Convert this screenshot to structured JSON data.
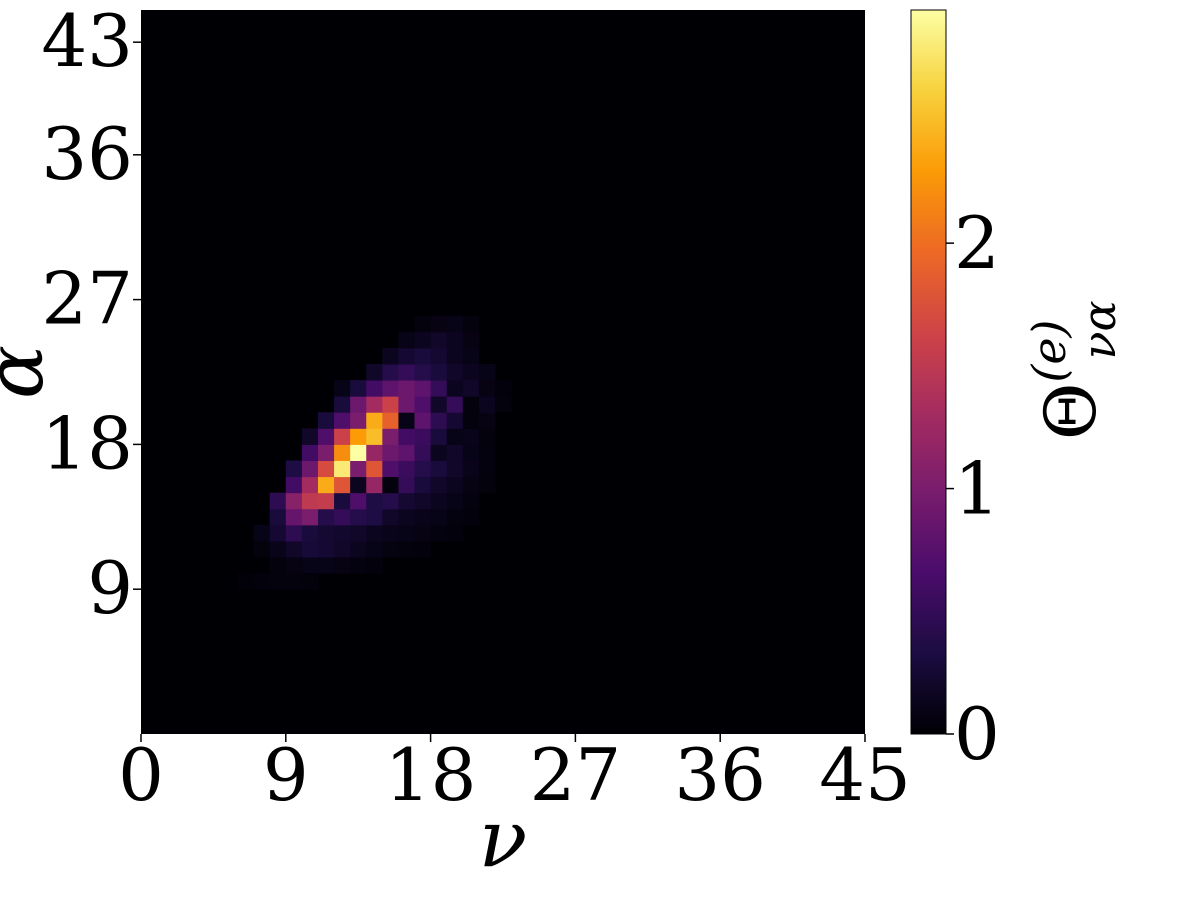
{
  "chart_data": {
    "type": "heatmap",
    "xlabel": "ν",
    "ylabel": "α",
    "colorbar": {
      "label": "Θ",
      "label_sup": "(e)",
      "label_sub": "να",
      "range": [
        0,
        2.95
      ],
      "ticks": [
        0,
        1,
        2
      ],
      "tick_labels": [
        "0",
        "1",
        "2"
      ],
      "colormap": "inferno",
      "stops": [
        "#000004",
        "#1b0c41",
        "#4a0c6b",
        "#781c6d",
        "#a52c60",
        "#cf4446",
        "#ed6925",
        "#fb9b06",
        "#f7d13d",
        "#fcffa4"
      ]
    },
    "x_ticks": [
      0,
      9,
      18,
      27,
      36,
      45
    ],
    "x_tick_labels": [
      "0",
      "9",
      "18",
      "27",
      "36",
      "45"
    ],
    "y_ticks": [
      9,
      18,
      27,
      36,
      43
    ],
    "y_tick_labels": [
      "9",
      "18",
      "27",
      "36",
      "43"
    ],
    "xlim": [
      0,
      45
    ],
    "ylim": [
      0,
      45
    ],
    "grid": false,
    "background_value": 0,
    "cells": [
      [
        8,
        10,
        0.05
      ],
      [
        9,
        10,
        0.08
      ],
      [
        10,
        10,
        0.1
      ],
      [
        11,
        10,
        0.1
      ],
      [
        12,
        10,
        0.08
      ],
      [
        13,
        10,
        0.06
      ],
      [
        14,
        10,
        0.04
      ],
      [
        7,
        11,
        0.05
      ],
      [
        8,
        11,
        0.12
      ],
      [
        9,
        11,
        0.2
      ],
      [
        10,
        11,
        0.28
      ],
      [
        11,
        11,
        0.25
      ],
      [
        12,
        11,
        0.2
      ],
      [
        13,
        11,
        0.15
      ],
      [
        14,
        11,
        0.1
      ],
      [
        15,
        11,
        0.07
      ],
      [
        16,
        11,
        0.05
      ],
      [
        17,
        11,
        0.04
      ],
      [
        7,
        12,
        0.1
      ],
      [
        8,
        12,
        0.25
      ],
      [
        9,
        12,
        0.45
      ],
      [
        10,
        12,
        0.3
      ],
      [
        11,
        12,
        0.25
      ],
      [
        12,
        12,
        0.22
      ],
      [
        13,
        12,
        0.2
      ],
      [
        14,
        12,
        0.15
      ],
      [
        15,
        12,
        0.12
      ],
      [
        16,
        12,
        0.1
      ],
      [
        17,
        12,
        0.08
      ],
      [
        18,
        12,
        0.06
      ],
      [
        19,
        12,
        0.04
      ],
      [
        8,
        13,
        0.3
      ],
      [
        9,
        13,
        0.85
      ],
      [
        10,
        13,
        1.0
      ],
      [
        11,
        13,
        0.4
      ],
      [
        12,
        13,
        0.5
      ],
      [
        13,
        13,
        0.4
      ],
      [
        14,
        13,
        0.35
      ],
      [
        15,
        13,
        0.2
      ],
      [
        16,
        13,
        0.15
      ],
      [
        17,
        13,
        0.12
      ],
      [
        18,
        13,
        0.1
      ],
      [
        19,
        13,
        0.06
      ],
      [
        20,
        13,
        0.04
      ],
      [
        8,
        14,
        0.45
      ],
      [
        9,
        14,
        1.1
      ],
      [
        10,
        14,
        1.5
      ],
      [
        11,
        14,
        1.55
      ],
      [
        12,
        14,
        0.3
      ],
      [
        13,
        14,
        0.7
      ],
      [
        14,
        14,
        0.35
      ],
      [
        15,
        14,
        0.4
      ],
      [
        16,
        14,
        0.25
      ],
      [
        17,
        14,
        0.2
      ],
      [
        18,
        14,
        0.15
      ],
      [
        19,
        14,
        0.1
      ],
      [
        20,
        14,
        0.06
      ],
      [
        9,
        15,
        0.6
      ],
      [
        10,
        15,
        1.3
      ],
      [
        11,
        15,
        2.4
      ],
      [
        12,
        15,
        1.8
      ],
      [
        13,
        15,
        0.15
      ],
      [
        14,
        15,
        1.2
      ],
      [
        15,
        15,
        0.05
      ],
      [
        16,
        15,
        0.5
      ],
      [
        17,
        15,
        0.3
      ],
      [
        18,
        15,
        0.2
      ],
      [
        19,
        15,
        0.15
      ],
      [
        20,
        15,
        0.08
      ],
      [
        21,
        15,
        0.05
      ],
      [
        9,
        16,
        0.35
      ],
      [
        10,
        16,
        0.9
      ],
      [
        11,
        16,
        1.7
      ],
      [
        12,
        16,
        2.8
      ],
      [
        13,
        16,
        1.0
      ],
      [
        14,
        16,
        1.8
      ],
      [
        15,
        16,
        0.7
      ],
      [
        16,
        16,
        0.55
      ],
      [
        17,
        16,
        0.4
      ],
      [
        18,
        16,
        0.3
      ],
      [
        19,
        16,
        0.2
      ],
      [
        20,
        16,
        0.12
      ],
      [
        21,
        16,
        0.06
      ],
      [
        10,
        17,
        0.6
      ],
      [
        11,
        17,
        1.0
      ],
      [
        12,
        17,
        2.2
      ],
      [
        13,
        17,
        2.95
      ],
      [
        14,
        17,
        1.2
      ],
      [
        15,
        17,
        0.9
      ],
      [
        16,
        17,
        0.8
      ],
      [
        17,
        17,
        0.5
      ],
      [
        18,
        17,
        0.15
      ],
      [
        19,
        17,
        0.2
      ],
      [
        20,
        17,
        0.1
      ],
      [
        21,
        17,
        0.06
      ],
      [
        10,
        18,
        0.2
      ],
      [
        11,
        18,
        0.7
      ],
      [
        12,
        18,
        1.6
      ],
      [
        13,
        18,
        2.3
      ],
      [
        14,
        18,
        2.5
      ],
      [
        15,
        18,
        1.0
      ],
      [
        16,
        18,
        0.6
      ],
      [
        17,
        18,
        0.55
      ],
      [
        18,
        18,
        0.3
      ],
      [
        19,
        18,
        0.1
      ],
      [
        20,
        18,
        0.12
      ],
      [
        21,
        18,
        0.05
      ],
      [
        11,
        19,
        0.3
      ],
      [
        12,
        19,
        0.7
      ],
      [
        13,
        19,
        1.0
      ],
      [
        14,
        19,
        2.4
      ],
      [
        15,
        19,
        1.9
      ],
      [
        16,
        19,
        0.1
      ],
      [
        17,
        19,
        0.8
      ],
      [
        18,
        19,
        0.45
      ],
      [
        19,
        19,
        0.25
      ],
      [
        20,
        19,
        0.05
      ],
      [
        21,
        19,
        0.08
      ],
      [
        12,
        20,
        0.3
      ],
      [
        13,
        20,
        0.9
      ],
      [
        14,
        20,
        1.3
      ],
      [
        15,
        20,
        1.6
      ],
      [
        16,
        20,
        0.9
      ],
      [
        17,
        20,
        0.7
      ],
      [
        18,
        20,
        0.2
      ],
      [
        19,
        20,
        0.5
      ],
      [
        20,
        20,
        0.05
      ],
      [
        21,
        20,
        0.15
      ],
      [
        22,
        20,
        0.05
      ],
      [
        12,
        21,
        0.1
      ],
      [
        13,
        21,
        0.3
      ],
      [
        14,
        21,
        0.6
      ],
      [
        15,
        21,
        0.8
      ],
      [
        16,
        21,
        0.9
      ],
      [
        17,
        21,
        0.8
      ],
      [
        18,
        21,
        0.5
      ],
      [
        19,
        21,
        0.15
      ],
      [
        20,
        21,
        0.2
      ],
      [
        21,
        21,
        0.08
      ],
      [
        22,
        21,
        0.04
      ],
      [
        14,
        22,
        0.2
      ],
      [
        15,
        22,
        0.4
      ],
      [
        16,
        22,
        0.5
      ],
      [
        17,
        22,
        0.4
      ],
      [
        18,
        22,
        0.3
      ],
      [
        19,
        22,
        0.2
      ],
      [
        20,
        22,
        0.15
      ],
      [
        21,
        22,
        0.1
      ],
      [
        15,
        23,
        0.15
      ],
      [
        16,
        23,
        0.25
      ],
      [
        17,
        23,
        0.3
      ],
      [
        18,
        23,
        0.25
      ],
      [
        19,
        23,
        0.15
      ],
      [
        20,
        23,
        0.1
      ],
      [
        16,
        24,
        0.1
      ],
      [
        17,
        24,
        0.15
      ],
      [
        18,
        24,
        0.2
      ],
      [
        19,
        24,
        0.15
      ],
      [
        20,
        24,
        0.08
      ],
      [
        17,
        25,
        0.05
      ],
      [
        18,
        25,
        0.08
      ],
      [
        19,
        25,
        0.1
      ],
      [
        20,
        25,
        0.05
      ],
      [
        6,
        9,
        0.03
      ],
      [
        7,
        9,
        0.04
      ],
      [
        8,
        9,
        0.05
      ],
      [
        9,
        9,
        0.05
      ],
      [
        10,
        9,
        0.04
      ]
    ]
  }
}
